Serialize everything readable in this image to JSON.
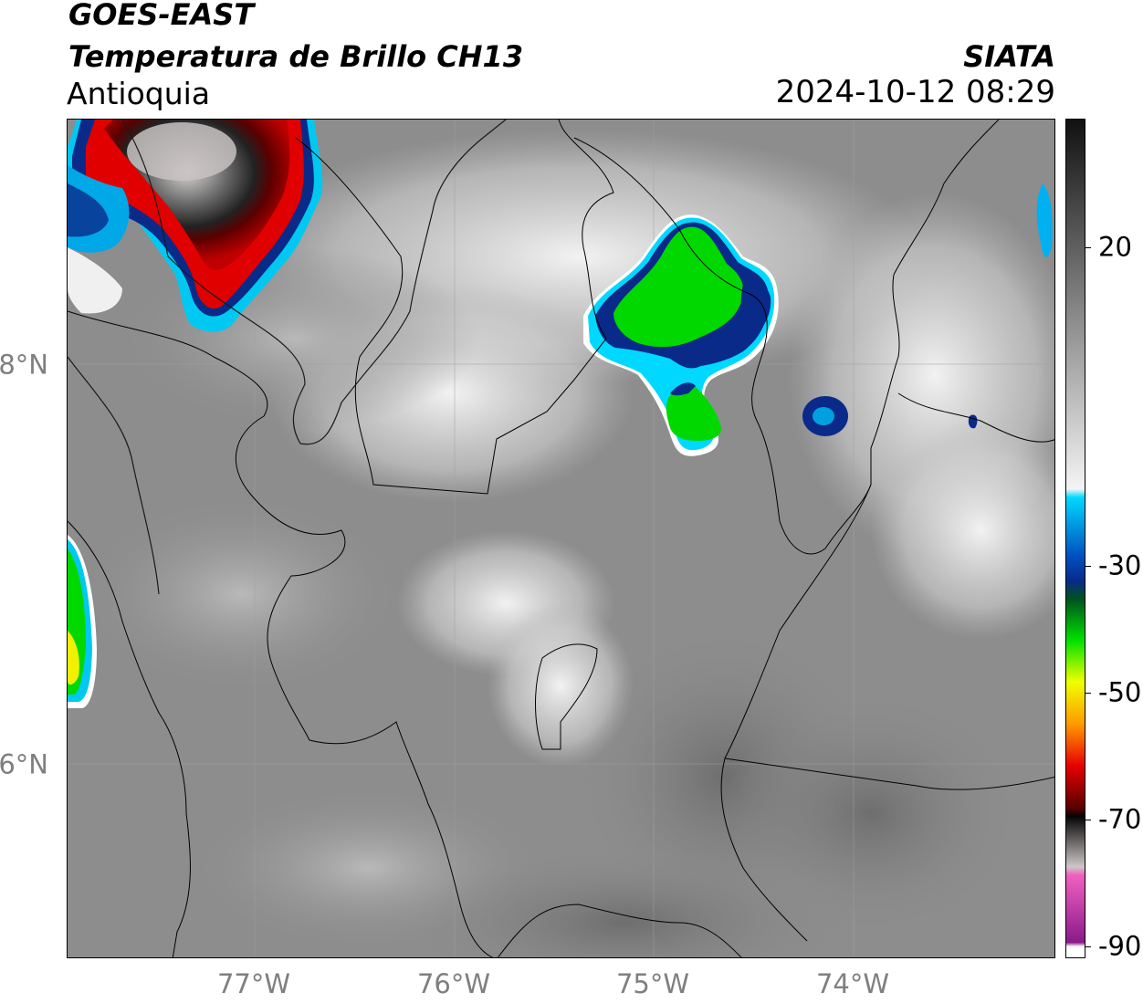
{
  "header": {
    "satellite": "GOES-EAST",
    "product": "Temperatura de Brillo CH13",
    "region": "Antioquia",
    "agency": "SIATA",
    "datetime": "2024-10-12 08:29"
  },
  "map": {
    "x_ticks": [
      "77°W",
      "76°W",
      "75°W",
      "74°W"
    ],
    "y_ticks": [
      "8°N",
      "6°N"
    ],
    "lon_range": [
      -77.95,
      -73.0
    ],
    "lat_range": [
      4.95,
      9.15
    ],
    "gridlines": true
  },
  "colorbar": {
    "ticks": [
      "20",
      "-30",
      "-50",
      "-70",
      "-90"
    ],
    "tick_values": [
      20,
      -30,
      -50,
      -70,
      -90
    ],
    "range": [
      -92,
      30
    ],
    "colors": {
      "grey_high": "#111111",
      "grey_low": "#f4f4f4",
      "cyan": "#00d8ff",
      "blue": "#0a2a8a",
      "green": "#00e000",
      "yellow": "#f0ff00",
      "orange": "#ff9a00",
      "red": "#e60000",
      "dark_red": "#5a0000",
      "black": "#050505",
      "pink": "#f060c0",
      "purple": "#8a1a8a"
    }
  }
}
